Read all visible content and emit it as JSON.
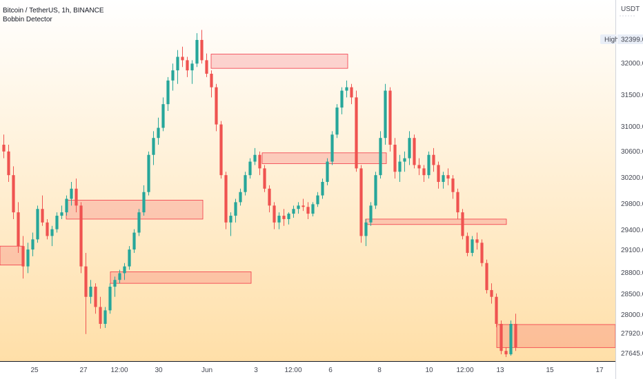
{
  "header": {
    "symbol_line": "Bitcoin / TetherUS, 1h, BINANCE",
    "indicator": "Bobbin Detector"
  },
  "price_axis": {
    "currency_label": "USDT",
    "high_tag": "High",
    "high_value": "32399.00",
    "labels": [
      "32000.00",
      "31500.00",
      "31000.00",
      "30600.00",
      "30200.00",
      "29800.00",
      "29400.00",
      "29100.00",
      "28800.00",
      "28500.00",
      "28000.00",
      "27920.00",
      "27645.00"
    ]
  },
  "time_axis": {
    "labels": [
      "25",
      "27",
      "12:00",
      "30",
      "Jun",
      "3",
      "12:00",
      "6",
      "8",
      "10",
      "12:00",
      "13",
      "15",
      "17"
    ]
  },
  "colors": {
    "bull": "#26a69a",
    "bear": "#ef5350",
    "zone_fill": "rgba(242,54,69,0.2)",
    "zone_stroke": "#f23645",
    "background_top": "#ffffff",
    "background_bottom": "#ffdfa8"
  },
  "chart_data": {
    "type": "candlestick",
    "y_range": [
      27520,
      32800
    ],
    "ohlc": [
      [
        30700,
        30850,
        30500,
        30600
      ],
      [
        30600,
        30700,
        30150,
        30250
      ],
      [
        30250,
        30380,
        29600,
        29700
      ],
      [
        29700,
        29850,
        29100,
        29200
      ],
      [
        29200,
        29350,
        28720,
        28900
      ],
      [
        28900,
        29250,
        28800,
        29150
      ],
      [
        29150,
        29400,
        29050,
        29300
      ],
      [
        29300,
        29800,
        29250,
        29750
      ],
      [
        29750,
        29950,
        29500,
        29550
      ],
      [
        29550,
        29600,
        29300,
        29350
      ],
      [
        29350,
        29500,
        29200,
        29450
      ],
      [
        29450,
        29700,
        29400,
        29650
      ],
      [
        29650,
        29800,
        29600,
        29700
      ],
      [
        29700,
        29950,
        29650,
        29900
      ],
      [
        29900,
        30150,
        29800,
        30050
      ],
      [
        30050,
        30200,
        29700,
        29800
      ],
      [
        29800,
        29850,
        28800,
        28900
      ],
      [
        28900,
        29100,
        27900,
        28450
      ],
      [
        28450,
        28700,
        28350,
        28600
      ],
      [
        28600,
        28650,
        28200,
        28300
      ],
      [
        28300,
        28450,
        27980,
        28050
      ],
      [
        28050,
        28300,
        27990,
        28250
      ],
      [
        28250,
        28650,
        28200,
        28600
      ],
      [
        28600,
        28750,
        28450,
        28700
      ],
      [
        28700,
        28850,
        28650,
        28800
      ],
      [
        28800,
        28950,
        28700,
        28900
      ],
      [
        28900,
        29200,
        28850,
        29150
      ],
      [
        29150,
        29450,
        29100,
        29400
      ],
      [
        29400,
        29750,
        29350,
        29700
      ],
      [
        29700,
        30100,
        29650,
        30000
      ],
      [
        30000,
        30600,
        29950,
        30550
      ],
      [
        30550,
        30900,
        30400,
        30800
      ],
      [
        30800,
        31100,
        30700,
        30950
      ],
      [
        30950,
        31400,
        30900,
        31300
      ],
      [
        31300,
        31700,
        31200,
        31650
      ],
      [
        31650,
        31900,
        31500,
        31800
      ],
      [
        31800,
        32100,
        31600,
        32000
      ],
      [
        32000,
        32150,
        31850,
        31950
      ],
      [
        31950,
        32000,
        31700,
        31800
      ],
      [
        31800,
        31950,
        31600,
        31900
      ],
      [
        31900,
        32350,
        31850,
        32250
      ],
      [
        32250,
        32399,
        31900,
        31950
      ],
      [
        31950,
        32050,
        31700,
        31750
      ],
      [
        31750,
        31800,
        31400,
        31550
      ],
      [
        31550,
        31600,
        30900,
        31000
      ],
      [
        31000,
        31050,
        30200,
        30250
      ],
      [
        30250,
        30300,
        29450,
        29550
      ],
      [
        29550,
        29700,
        29350,
        29650
      ],
      [
        29650,
        29900,
        29550,
        29850
      ],
      [
        29850,
        30050,
        29800,
        30000
      ],
      [
        30000,
        30300,
        29950,
        30250
      ],
      [
        30250,
        30500,
        30200,
        30450
      ],
      [
        30450,
        30650,
        30400,
        30550
      ],
      [
        30550,
        30600,
        30250,
        30350
      ],
      [
        30350,
        30400,
        30000,
        30050
      ],
      [
        30050,
        30100,
        29700,
        29800
      ],
      [
        29800,
        29850,
        29450,
        29550
      ],
      [
        29550,
        29700,
        29450,
        29650
      ],
      [
        29650,
        29750,
        29500,
        29600
      ],
      [
        29600,
        29700,
        29520,
        29680
      ],
      [
        29680,
        29800,
        29620,
        29750
      ],
      [
        29750,
        29850,
        29680,
        29800
      ],
      [
        29800,
        29900,
        29720,
        29780
      ],
      [
        29780,
        29850,
        29600,
        29680
      ],
      [
        29680,
        29850,
        29640,
        29820
      ],
      [
        29820,
        30000,
        29780,
        29950
      ],
      [
        29950,
        30200,
        29900,
        30150
      ],
      [
        30150,
        30500,
        30100,
        30450
      ],
      [
        30450,
        30900,
        30400,
        30850
      ],
      [
        30850,
        31300,
        30800,
        31250
      ],
      [
        31250,
        31550,
        31150,
        31500
      ],
      [
        31500,
        31650,
        31400,
        31550
      ],
      [
        31550,
        31600,
        31300,
        31400
      ],
      [
        31400,
        31500,
        30300,
        30350
      ],
      [
        30350,
        30400,
        29250,
        29350
      ],
      [
        29350,
        29600,
        29200,
        29550
      ],
      [
        29550,
        29850,
        29500,
        29800
      ],
      [
        29800,
        30300,
        29750,
        30250
      ],
      [
        30250,
        30900,
        30200,
        30800
      ],
      [
        30800,
        31600,
        30700,
        31500
      ],
      [
        31500,
        31550,
        30600,
        30700
      ],
      [
        30700,
        30800,
        30200,
        30300
      ],
      [
        30300,
        30550,
        30150,
        30450
      ],
      [
        30450,
        30600,
        30300,
        30500
      ],
      [
        30500,
        30900,
        30400,
        30800
      ],
      [
        30800,
        30850,
        30350,
        30400
      ],
      [
        30400,
        30500,
        30250,
        30350
      ],
      [
        30350,
        30400,
        30150,
        30250
      ],
      [
        30250,
        30600,
        30200,
        30550
      ],
      [
        30550,
        30650,
        30300,
        30400
      ],
      [
        30400,
        30450,
        30050,
        30150
      ],
      [
        30150,
        30300,
        30050,
        30250
      ],
      [
        30250,
        30350,
        30100,
        30200
      ],
      [
        30200,
        30250,
        29900,
        30000
      ],
      [
        30000,
        30050,
        29600,
        29700
      ],
      [
        29700,
        29750,
        29300,
        29350
      ],
      [
        29350,
        29400,
        29050,
        29100
      ],
      [
        29100,
        29350,
        29050,
        29300
      ],
      [
        29300,
        29400,
        29150,
        29250
      ],
      [
        29250,
        29300,
        28900,
        28950
      ],
      [
        28950,
        29000,
        28500,
        28550
      ],
      [
        28550,
        28650,
        28350,
        28450
      ],
      [
        28450,
        28500,
        28000,
        28050
      ],
      [
        28050,
        28100,
        27600,
        27650
      ],
      [
        27650,
        27700,
        27560,
        27600
      ],
      [
        27600,
        28100,
        27580,
        28050
      ],
      [
        28050,
        28200,
        27650,
        27700
      ]
    ],
    "zones": [
      {
        "top": 29200,
        "bottom": 28920
      },
      {
        "top": 29880,
        "bottom": 29600
      },
      {
        "top": 28820,
        "bottom": 28650
      },
      {
        "top": 32040,
        "bottom": 31830
      },
      {
        "top": 30580,
        "bottom": 30420
      },
      {
        "top": 29600,
        "bottom": 29520
      },
      {
        "top": 28040,
        "bottom": 27700
      }
    ]
  }
}
